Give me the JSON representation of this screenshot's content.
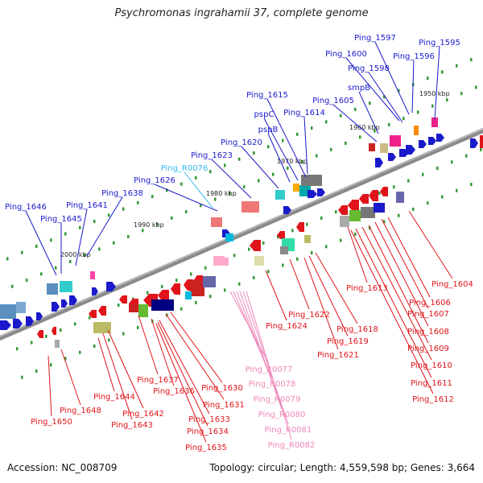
{
  "title": "Psychromonas ingrahamii 37, complete genome",
  "footer": {
    "accession": "Accession: NC_008709",
    "topology": "Topology: circular; Length: 4,559,598 bp; Genes: 3,664"
  },
  "colors": {
    "forward_label": "#1a1acc",
    "reverse_label": "#e0141a",
    "rna_forward_label": "#33bbee",
    "rna_reverse_label": "#ee88bb",
    "backbone": "#888888",
    "tick": "#339933"
  },
  "scale_labels": [
    "1950 kbp",
    "1960 kbp",
    "1970 kbp",
    "1980 kbp",
    "1990 kbp",
    "2000 kbp"
  ],
  "labels_forward": [
    "Ping_1597",
    "Ping_1595",
    "Ping_1600",
    "Ping_1596",
    "Ping_1598",
    "smpB",
    "Ping_1615",
    "Ping_1605",
    "pspC",
    "Ping_1614",
    "pspB",
    "Ping_1620",
    "Ping_1623",
    "Ping_1626",
    "Ping_1638",
    "Ping_1646",
    "Ping_1641",
    "Ping_1645"
  ],
  "labels_forward_rna": [
    "Ping_R0076"
  ],
  "labels_reverse": [
    "Ping_1604",
    "Ping_1613",
    "Ping_1606",
    "Ping_1607",
    "Ping_1608",
    "Ping_1609",
    "Ping_1610",
    "Ping_1611",
    "Ping_1612",
    "Ping_1622",
    "Ping_1624",
    "Ping_1618",
    "Ping_1619",
    "Ping_1621",
    "Ping_1637",
    "Ping_1636",
    "Ping_1630",
    "Ping_1631",
    "Ping_1633",
    "Ping_1634",
    "Ping_1635",
    "Ping_1644",
    "Ping_1642",
    "Ping_1643",
    "Ping_1648",
    "Ping_1650"
  ],
  "labels_reverse_rna": [
    "Ping_R0077",
    "Ping_R0078",
    "Ping_R0079",
    "Ping_R0080",
    "Ping_R0081",
    "Ping_R0082"
  ]
}
